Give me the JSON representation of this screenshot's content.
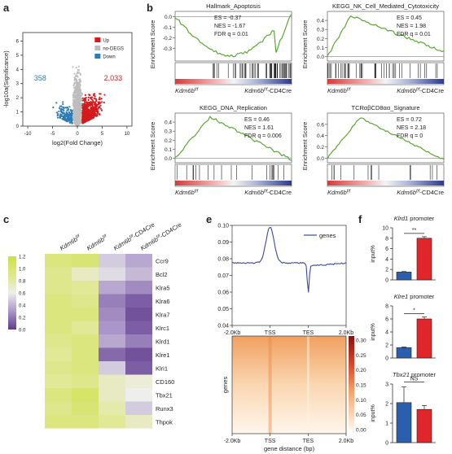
{
  "panels": {
    "a": "a",
    "b": "b",
    "c": "c",
    "e": "e",
    "f": "f"
  },
  "colors": {
    "up": "#d7191c",
    "down": "#2c7bb6",
    "nodegs": "#bdbdbd",
    "gsea_line": "#5aa832",
    "bar_blue": "#2b5fae",
    "bar_red": "#e0262b",
    "profile_line": "#3a4a9a"
  },
  "volcano": {
    "ylabel": "-log10a(Significance)",
    "xlabel": "log2(Fold Change)",
    "legend": [
      "Up",
      "no-DEGS",
      "Down"
    ],
    "count_down": "358",
    "count_up": "2,033",
    "xticks": [
      "-10",
      "-5",
      "0",
      "5",
      "10"
    ],
    "yticks": [
      "0",
      "1",
      "2",
      "3",
      "4",
      "5",
      "6"
    ]
  },
  "gsea": [
    {
      "title": "Hallmark_Apoptosis",
      "ylabel": "Enrichment Score",
      "stats": [
        "ES = -0.37",
        "NES = -1.67",
        "FDR q = 0.01"
      ],
      "yticks": [
        "0.0",
        "-0.1",
        "-0.2",
        "-0.3"
      ],
      "left": "Kdm6b",
      "left_sup": "f/f",
      "right": "Kdm6b",
      "right_sup": "f/f",
      "right_suffix": "-CD4Cre"
    },
    {
      "title": "KEGG_NK_Cell_Mediated_Cytotoxicity",
      "ylabel": "Enrichment Score",
      "stats": [
        "ES = 0.45",
        "NES = 1.98",
        "FDR q = 0.01"
      ],
      "yticks": [
        "0.4",
        "0.3",
        "0.2",
        "0.1",
        "0.0"
      ],
      "left": "Kdm6b",
      "left_sup": "f/f",
      "right": "Kdm6b",
      "right_sup": "f/f",
      "right_suffix": "-CD4Cre"
    },
    {
      "title": "KEGG_DNA_Replication",
      "ylabel": "Enrichment Score",
      "stats": [
        "ES = 0.46",
        "NES = 1.61",
        "FDR q = 0.006"
      ],
      "yticks": [
        "0.4",
        "0.3",
        "0.2",
        "0.1",
        "0.0"
      ],
      "left": "Kdm6b",
      "left_sup": "f/f",
      "right": "Kdm6b",
      "right_sup": "f/f",
      "right_suffix": "-CD4Cre"
    },
    {
      "title": "TCRαβCD8αα_Signature",
      "ylabel": "Enrichment Score",
      "stats": [
        "ES = 0.72",
        "NES = 2.18",
        "FDR q = 0"
      ],
      "yticks": [
        "0.6",
        "0.4",
        "0.2",
        "0.0"
      ],
      "left": "Kdm6b",
      "left_sup": "f/f",
      "right": "Kdm6b",
      "right_sup": "f/f",
      "right_suffix": "-CD4Cre"
    }
  ],
  "heatmap": {
    "columns": [
      {
        "base": "Kdm6b",
        "sup": "f/f",
        "suffix": ""
      },
      {
        "base": "Kdm6b",
        "sup": "f/f",
        "suffix": ""
      },
      {
        "base": "Kdm6b",
        "sup": "f/f",
        "suffix": "-CD4Cre"
      },
      {
        "base": "Kdm6b",
        "sup": "f/f",
        "suffix": "-CD4Cre"
      }
    ],
    "rows": [
      "Ccr9",
      "Bcl2",
      "Klra5",
      "Klra6",
      "Klra7",
      "Klrc1",
      "Klrd1",
      "Klre1",
      "Klri1",
      "CD160",
      "Tbx21",
      "Runx3",
      "Thpok"
    ],
    "scale_ticks": [
      "1.2",
      "1.0",
      "0.8",
      "0.6",
      "0.4",
      "0.2",
      "0.0"
    ],
    "values": [
      [
        0.95,
        1.0,
        0.55,
        0.45
      ],
      [
        0.9,
        0.75,
        0.6,
        0.5
      ],
      [
        0.9,
        0.85,
        0.45,
        0.35
      ],
      [
        0.95,
        0.9,
        0.3,
        0.15
      ],
      [
        0.95,
        0.95,
        0.35,
        0.1
      ],
      [
        0.95,
        0.85,
        0.4,
        0.15
      ],
      [
        0.9,
        0.95,
        0.45,
        0.3
      ],
      [
        0.85,
        0.95,
        0.2,
        0.1
      ],
      [
        0.9,
        0.95,
        0.55,
        0.15
      ],
      [
        0.85,
        0.9,
        0.75,
        0.7
      ],
      [
        0.95,
        1.05,
        0.75,
        0.65
      ],
      [
        0.9,
        1.0,
        0.8,
        0.55
      ],
      [
        0.95,
        0.95,
        0.85,
        0.75
      ]
    ]
  },
  "profile": {
    "legend": "genes",
    "yticks": [
      "0.10",
      "0.09",
      "0.08",
      "0.07",
      "0.06",
      "0.05",
      "0.04"
    ],
    "xticks": [
      "-2.0Kb",
      "TSS",
      "TES",
      "2.0Kb"
    ]
  },
  "density": {
    "ylabel": "genes",
    "xlabel": "gene distance (bp)",
    "xticks": [
      "-2.0Kb",
      "TSS",
      "TES",
      "2.0Kb"
    ],
    "scale_ticks": [
      "0.30",
      "0.25",
      "0.20",
      "0.15",
      "0.10",
      "0.05",
      "0.00"
    ]
  },
  "bars": [
    {
      "title_gene": "Klrd1",
      "title_rest": " promoter",
      "ylabel": "input%",
      "yticks": [
        "10",
        "8",
        "6",
        "4",
        "2",
        "0"
      ],
      "sig": "**",
      "values": [
        1.5,
        8.0
      ],
      "ymax": 10
    },
    {
      "title_gene": "Klre1",
      "title_rest": " promoter",
      "ylabel": "input%",
      "yticks": [
        "8",
        "6",
        "4",
        "2",
        "0"
      ],
      "sig": "*",
      "values": [
        1.6,
        6.0
      ],
      "ymax": 8
    },
    {
      "title_gene": "Tbx21",
      "title_rest": " promoter",
      "ylabel": "input%",
      "yticks": [
        "3",
        "2",
        "1",
        "0"
      ],
      "sig": "NS",
      "values": [
        2.05,
        1.7
      ],
      "ymax": 3
    }
  ]
}
